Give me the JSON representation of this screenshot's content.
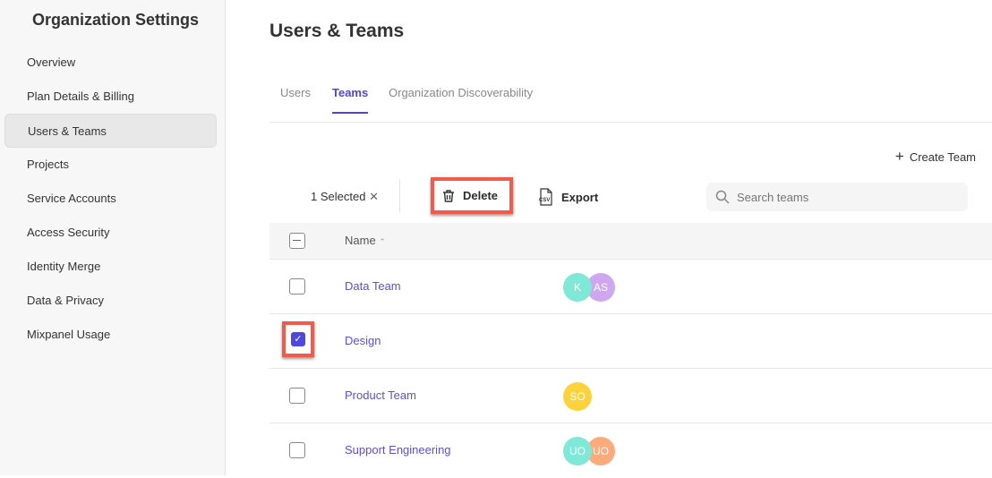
{
  "sidebar": {
    "title": "Organization Settings",
    "items": [
      {
        "label": "Overview"
      },
      {
        "label": "Plan Details & Billing"
      },
      {
        "label": "Users & Teams",
        "active": true
      },
      {
        "label": "Projects"
      },
      {
        "label": "Service Accounts"
      },
      {
        "label": "Access Security"
      },
      {
        "label": "Identity Merge"
      },
      {
        "label": "Data & Privacy"
      },
      {
        "label": "Mixpanel Usage"
      }
    ]
  },
  "main": {
    "title": "Users & Teams",
    "tabs": [
      {
        "label": "Users"
      },
      {
        "label": "Teams",
        "active": true
      },
      {
        "label": "Organization Discoverability"
      }
    ],
    "create_label": "Create Team",
    "selected_label": "1 Selected",
    "delete_label": "Delete",
    "export_label": "Export",
    "search_placeholder": "Search teams",
    "column_name": "Name",
    "rows": [
      {
        "name": "Data Team",
        "checked": false,
        "avatars": [
          {
            "initials": "K",
            "color": "#7fe8d6"
          },
          {
            "initials": "AS",
            "color": "#cfa6f2"
          }
        ]
      },
      {
        "name": "Design",
        "checked": true,
        "avatars": []
      },
      {
        "name": "Product Team",
        "checked": false,
        "avatars": [
          {
            "initials": "SO",
            "color": "#fdd23c"
          }
        ]
      },
      {
        "name": "Support Engineering",
        "checked": false,
        "avatars": [
          {
            "initials": "UO",
            "color": "#7fe8d6"
          },
          {
            "initials": "UO",
            "color": "#fdaa7c"
          }
        ]
      }
    ]
  },
  "colors": {
    "accent": "#5046e0",
    "highlight": "#f35a4a"
  }
}
